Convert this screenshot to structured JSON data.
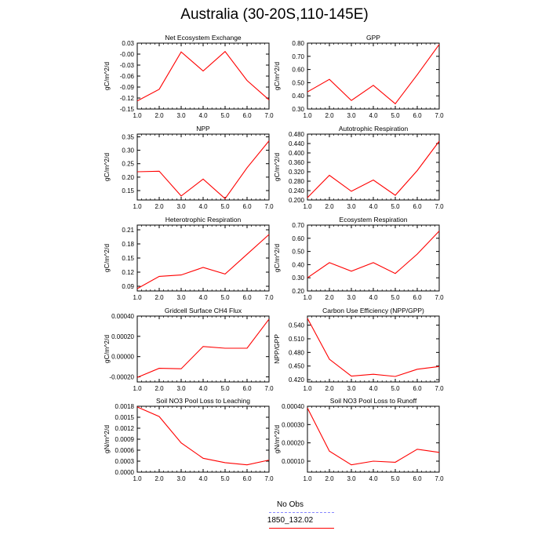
{
  "title": "Australia (30-20S,110-145E)",
  "legend": {
    "items": [
      {
        "label": "No Obs",
        "color": "#8888ff",
        "style": "dashed"
      },
      {
        "label": "1850_132.02",
        "color": "#ff0000",
        "style": "solid"
      }
    ]
  },
  "chart_data": [
    {
      "type": "line",
      "title": "Net Ecosystem Exchange",
      "ylabel": "gC/m^2/d",
      "xlim": [
        1.0,
        7.0
      ],
      "ylim": [
        -0.15,
        0.03
      ],
      "xticks": [
        "1.0",
        "2.0",
        "3.0",
        "4.0",
        "5.0",
        "6.0",
        "7.0"
      ],
      "yticks": [
        "0.03",
        "-0.00",
        "-0.03",
        "-0.06",
        "-0.09",
        "-0.12",
        "-0.15"
      ],
      "x": [
        1,
        2,
        3,
        4,
        5,
        6,
        7
      ],
      "series": [
        {
          "name": "1850_132.02",
          "color": "#ff0000",
          "values": [
            -0.128,
            -0.096,
            0.006,
            -0.046,
            0.007,
            -0.072,
            -0.125
          ]
        }
      ]
    },
    {
      "type": "line",
      "title": "GPP",
      "ylabel": "gC/m^2/d",
      "xlim": [
        1.0,
        7.0
      ],
      "ylim": [
        0.3,
        0.8
      ],
      "xticks": [
        "1.0",
        "2.0",
        "3.0",
        "4.0",
        "5.0",
        "6.0",
        "7.0"
      ],
      "yticks": [
        "0.80",
        "0.70",
        "0.60",
        "0.50",
        "0.40",
        "0.30"
      ],
      "x": [
        1,
        2,
        3,
        4,
        5,
        6,
        7
      ],
      "series": [
        {
          "name": "1850_132.02",
          "color": "#ff0000",
          "values": [
            0.43,
            0.525,
            0.365,
            0.48,
            0.34,
            0.56,
            0.79
          ]
        }
      ]
    },
    {
      "type": "line",
      "title": "NPP",
      "ylabel": "gC/m^2/d",
      "xlim": [
        1.0,
        7.0
      ],
      "ylim": [
        0.115,
        0.36
      ],
      "xticks": [
        "1.0",
        "2.0",
        "3.0",
        "4.0",
        "5.0",
        "6.0",
        "7.0"
      ],
      "yticks": [
        "0.35",
        "0.30",
        "0.25",
        "0.20",
        "0.15"
      ],
      "x": [
        1,
        2,
        3,
        4,
        5,
        6,
        7
      ],
      "series": [
        {
          "name": "1850_132.02",
          "color": "#ff0000",
          "values": [
            0.22,
            0.222,
            0.13,
            0.193,
            0.12,
            0.235,
            0.335
          ]
        }
      ]
    },
    {
      "type": "line",
      "title": "Autotrophic Respiration",
      "ylabel": "gC/m^2/d",
      "xlim": [
        1.0,
        7.0
      ],
      "ylim": [
        0.2,
        0.48
      ],
      "xticks": [
        "1.0",
        "2.0",
        "3.0",
        "4.0",
        "5.0",
        "6.0",
        "7.0"
      ],
      "yticks": [
        "0.480",
        "0.440",
        "0.400",
        "0.360",
        "0.320",
        "0.280",
        "0.240",
        "0.200"
      ],
      "x": [
        1,
        2,
        3,
        4,
        5,
        6,
        7
      ],
      "series": [
        {
          "name": "1850_132.02",
          "color": "#ff0000",
          "values": [
            0.21,
            0.305,
            0.237,
            0.285,
            0.22,
            0.325,
            0.45
          ]
        }
      ]
    },
    {
      "type": "line",
      "title": "Heterotrophic Respiration",
      "ylabel": "gC/m^2/d",
      "xlim": [
        1.0,
        7.0
      ],
      "ylim": [
        0.08,
        0.22
      ],
      "xticks": [
        "1.0",
        "2.0",
        "3.0",
        "4.0",
        "5.0",
        "6.0",
        "7.0"
      ],
      "yticks": [
        "0.21",
        "0.18",
        "0.15",
        "0.12",
        "0.09"
      ],
      "x": [
        1,
        2,
        3,
        4,
        5,
        6,
        7
      ],
      "series": [
        {
          "name": "1850_132.02",
          "color": "#ff0000",
          "values": [
            0.085,
            0.111,
            0.114,
            0.13,
            0.116,
            0.158,
            0.2
          ]
        }
      ]
    },
    {
      "type": "line",
      "title": "Ecosystem Respiration",
      "ylabel": "gC/m^2/d",
      "xlim": [
        1.0,
        7.0
      ],
      "ylim": [
        0.2,
        0.7
      ],
      "xticks": [
        "1.0",
        "2.0",
        "3.0",
        "4.0",
        "5.0",
        "6.0",
        "7.0"
      ],
      "yticks": [
        "0.70",
        "0.60",
        "0.50",
        "0.40",
        "0.30",
        "0.20"
      ],
      "x": [
        1,
        2,
        3,
        4,
        5,
        6,
        7
      ],
      "series": [
        {
          "name": "1850_132.02",
          "color": "#ff0000",
          "values": [
            0.3,
            0.415,
            0.35,
            0.415,
            0.333,
            0.48,
            0.655
          ]
        }
      ]
    },
    {
      "type": "line",
      "title": "Gridcell Surface CH4 Flux",
      "ylabel": "gC/m^2/d",
      "xlim": [
        1.0,
        7.0
      ],
      "ylim": [
        -0.00025,
        0.0004
      ],
      "xticks": [
        "1.0",
        "2.0",
        "3.0",
        "4.0",
        "5.0",
        "6.0",
        "7.0"
      ],
      "yticks": [
        "0.00040",
        "0.00020",
        "0.00000",
        "-0.00020"
      ],
      "x": [
        1,
        2,
        3,
        4,
        5,
        6,
        7
      ],
      "series": [
        {
          "name": "1850_132.02",
          "color": "#ff0000",
          "values": [
            -0.000205,
            -0.000115,
            -0.00012,
            0.0001,
            8.3e-05,
            8.3e-05,
            0.00037
          ]
        }
      ]
    },
    {
      "type": "line",
      "title": "Carbon Use Efficiency (NPP/GPP)",
      "ylabel": "NPP/GPP",
      "xlim": [
        1.0,
        7.0
      ],
      "ylim": [
        0.415,
        0.56
      ],
      "xticks": [
        "1.0",
        "2.0",
        "3.0",
        "4.0",
        "5.0",
        "6.0",
        "7.0"
      ],
      "yticks": [
        "0.540",
        "0.510",
        "0.480",
        "0.450",
        "0.420"
      ],
      "x": [
        1,
        2,
        3,
        4,
        5,
        6,
        7
      ],
      "series": [
        {
          "name": "1850_132.02",
          "color": "#ff0000",
          "values": [
            0.555,
            0.465,
            0.428,
            0.432,
            0.427,
            0.443,
            0.449
          ]
        }
      ]
    },
    {
      "type": "line",
      "title": "Soil NO3 Pool Loss to Leaching",
      "ylabel": "gN/m^2/d",
      "xlim": [
        1.0,
        7.0
      ],
      "ylim": [
        0.0,
        0.0018
      ],
      "xticks": [
        "1.0",
        "2.0",
        "3.0",
        "4.0",
        "5.0",
        "6.0",
        "7.0"
      ],
      "yticks": [
        "0.0018",
        "0.0015",
        "0.0012",
        "0.0009",
        "0.0006",
        "0.0003",
        "0.0000"
      ],
      "x": [
        1,
        2,
        3,
        4,
        5,
        6,
        7
      ],
      "series": [
        {
          "name": "1850_132.02",
          "color": "#ff0000",
          "values": [
            0.00178,
            0.00152,
            0.0008,
            0.00038,
            0.00026,
            0.0002,
            0.00033
          ]
        }
      ]
    },
    {
      "type": "line",
      "title": "Soil NO3 Pool Loss to Runoff",
      "ylabel": "gN/m^2/d",
      "xlim": [
        1.0,
        7.0
      ],
      "ylim": [
        4e-05,
        0.0004
      ],
      "xticks": [
        "1.0",
        "2.0",
        "3.0",
        "4.0",
        "5.0",
        "6.0",
        "7.0"
      ],
      "yticks": [
        "0.00040",
        "0.00030",
        "0.00020",
        "0.00010"
      ],
      "x": [
        1,
        2,
        3,
        4,
        5,
        6,
        7
      ],
      "series": [
        {
          "name": "1850_132.02",
          "color": "#ff0000",
          "values": [
            0.00039,
            0.000155,
            8e-05,
            0.0001,
            9.4e-05,
            0.000165,
            0.000148
          ]
        }
      ]
    }
  ]
}
